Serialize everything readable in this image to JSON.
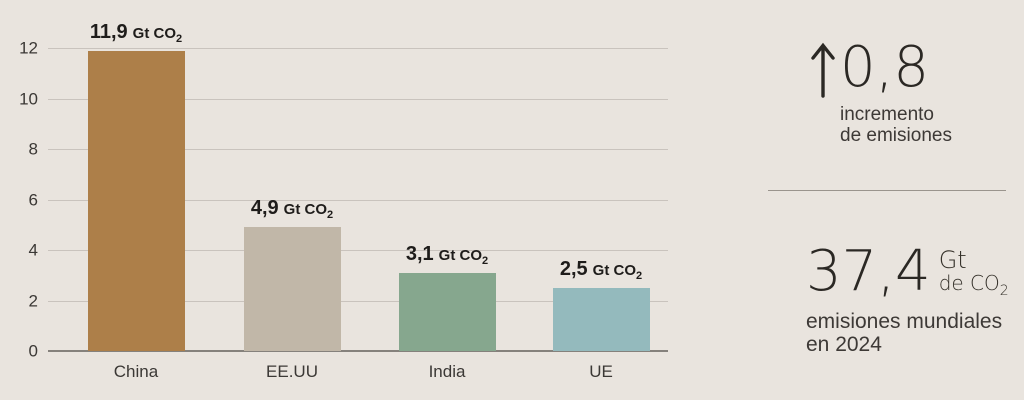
{
  "colors": {
    "background": "#e9e4de",
    "gridline": "#c9c3bd",
    "axis_line": "#85817c",
    "tick_text": "#3b3835",
    "value_text": "#1e1c1a",
    "caption_text": "#3d3936",
    "big_number_text": "#2b2824",
    "divider": "#9a948d"
  },
  "chart_data": {
    "type": "bar",
    "title": "",
    "xlabel": "",
    "ylabel": "",
    "categories": [
      "China",
      "EE.UU",
      "India",
      "UE"
    ],
    "values": [
      11.9,
      4.9,
      3.1,
      2.5
    ],
    "value_labels": [
      "11,9",
      "4,9",
      "3,1",
      "2,5"
    ],
    "unit_prefix": "Gt CO",
    "unit_sub": "2",
    "bar_colors": [
      "#ad7f49",
      "#c1b7a8",
      "#86a78e",
      "#94babd"
    ],
    "ylim": [
      0,
      12
    ],
    "yticks": [
      0,
      2,
      4,
      6,
      8,
      10,
      12
    ],
    "ytick_labels": [
      "0",
      "2",
      "4",
      "6",
      "8",
      "10",
      "12"
    ],
    "grid": true,
    "legend": false
  },
  "side_panel": {
    "increase": {
      "icon": "up-arrow-icon",
      "value": "0,8",
      "caption_line1": "incremento",
      "caption_line2": "de emisiones"
    },
    "total": {
      "value": "37,4",
      "unit_top": "Gt",
      "unit_bottom_prefix": "de CO",
      "unit_bottom_sub": "2",
      "caption_line1": "emisiones mundiales",
      "caption_line2": "en 2024"
    }
  }
}
